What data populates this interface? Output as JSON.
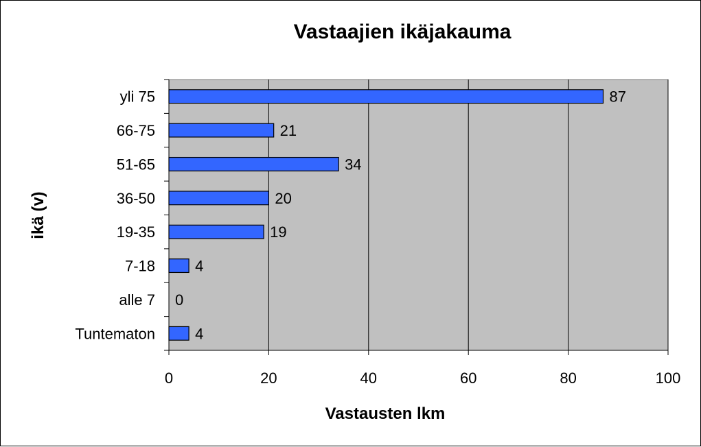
{
  "chart_data": {
    "type": "bar",
    "orientation": "horizontal",
    "title": "Vastaajien ikäjakauma",
    "xlabel": "Vastausten lkm",
    "ylabel": "ikä (v)",
    "categories": [
      "yli 75",
      "66-75",
      "51-65",
      "36-50",
      "19-35",
      "7-18",
      "alle 7",
      "Tuntematon"
    ],
    "values": [
      87,
      21,
      34,
      20,
      19,
      4,
      0,
      4
    ],
    "xlim": [
      0,
      100
    ],
    "xticks": [
      0,
      20,
      40,
      60,
      80,
      100
    ],
    "grid": "vertical",
    "legend": "none",
    "colors": {
      "bar": "#3366ff",
      "plot_background": "#c0c0c0",
      "gridline": "#000000"
    }
  }
}
